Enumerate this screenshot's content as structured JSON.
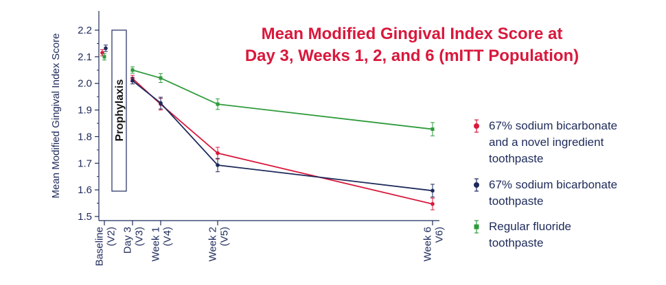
{
  "chart_data": {
    "type": "line",
    "title": [
      "Mean Modified Gingival Index Score at",
      "Day 3, Weeks 1, 2, and 6 (mITT Population)"
    ],
    "ylabel": "Mean Modified Gingival Index Score",
    "xlabel": "",
    "ylim": [
      1.47,
      2.25
    ],
    "yticks": [
      1.5,
      1.6,
      1.7,
      1.8,
      1.9,
      2.0,
      2.1,
      2.2
    ],
    "ytick_labels": [
      "1.5",
      "1.6",
      "1.7",
      "1.8",
      "1.9",
      "2.0",
      "2.1",
      "2.2"
    ],
    "x_days": [
      0,
      3,
      7,
      14,
      42
    ],
    "x_tick_labels": [
      [
        "Baseline",
        "(V2)"
      ],
      [
        "Day 3",
        "(V3)"
      ],
      [
        "Week 1",
        "(V4)"
      ],
      [
        "Week 2",
        "(V5)"
      ],
      [
        "Week 6",
        "V6)"
      ]
    ],
    "annotation": "Prophylaxis",
    "series": [
      {
        "name": [
          "67% sodium bicarbonate",
          "and a novel ingredient",
          "toothpaste"
        ],
        "color": "#d9183c",
        "marker": "circle",
        "baseline": 2.115,
        "baseline_err": 0.012,
        "days": [
          3,
          7,
          14,
          42
        ],
        "values": [
          2.018,
          1.922,
          1.738,
          1.547
        ],
        "errors": [
          0.012,
          0.022,
          0.022,
          0.022
        ]
      },
      {
        "name": [
          "67% sodium bicarbonate",
          "toothpaste"
        ],
        "color": "#1d2a5a",
        "marker": "circle",
        "baseline": 2.132,
        "baseline_err": 0.012,
        "days": [
          3,
          7,
          14,
          42
        ],
        "values": [
          2.01,
          1.926,
          1.693,
          1.597
        ],
        "errors": [
          0.012,
          0.022,
          0.025,
          0.024
        ]
      },
      {
        "name": [
          "Regular fluoride",
          "toothpaste"
        ],
        "color": "#2e9b3b",
        "marker": "square",
        "baseline": 2.1,
        "baseline_err": 0.012,
        "days": [
          3,
          7,
          14,
          42
        ],
        "values": [
          2.05,
          2.02,
          1.922,
          1.828
        ],
        "errors": [
          0.012,
          0.017,
          0.02,
          0.025
        ]
      }
    ]
  }
}
